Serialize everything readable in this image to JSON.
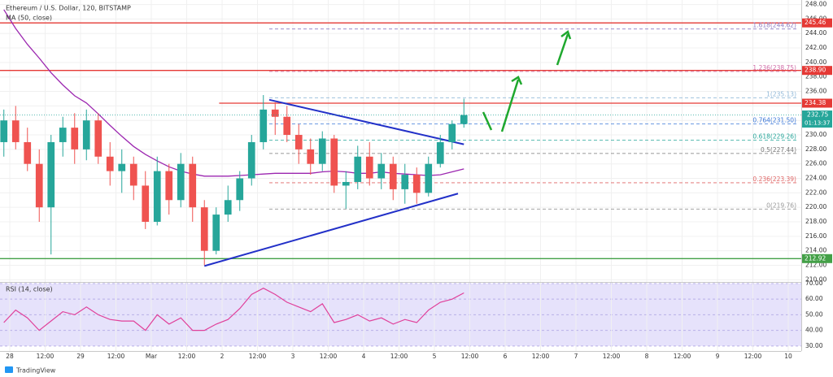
{
  "chart_data": {
    "type": "candlestick",
    "title": "Ethereum / U.S. Dollar, 120, BITSTAMP",
    "x": [
      -2,
      2,
      6,
      10,
      14,
      18,
      22,
      26,
      30,
      34,
      38,
      42,
      46,
      50,
      54,
      58,
      62,
      66,
      70,
      74,
      78,
      82,
      86,
      90,
      94,
      98,
      102,
      106,
      110,
      114,
      118,
      122,
      126,
      130,
      134,
      138,
      142,
      146,
      150,
      154
    ],
    "open": [
      229,
      232,
      229,
      226,
      220,
      229,
      231,
      228,
      232,
      227,
      225,
      226,
      223,
      218,
      225,
      221,
      226,
      220,
      214,
      219,
      221,
      224,
      229,
      233.5,
      232.5,
      230,
      228,
      226,
      229.5,
      223,
      223.5,
      227,
      224,
      226,
      222.5,
      224.5,
      222,
      226,
      229,
      231.5
    ],
    "high": [
      233.5,
      234,
      231,
      228,
      230,
      232.5,
      233,
      233.5,
      233,
      229,
      228,
      227,
      225,
      227,
      226,
      227.5,
      227,
      221,
      220,
      223,
      225,
      230,
      235.5,
      234.5,
      234,
      231.5,
      229.5,
      230.5,
      230,
      225,
      228.5,
      229,
      227.5,
      227,
      226,
      225.5,
      227,
      230,
      232,
      235
    ],
    "low": [
      227,
      228,
      225,
      218,
      213.5,
      227,
      226,
      226.5,
      226,
      223,
      222,
      221,
      217,
      217.5,
      219,
      220,
      218,
      212,
      213.5,
      218,
      219.5,
      223,
      228,
      230,
      229,
      226,
      224.5,
      225,
      222,
      219.8,
      222.5,
      223,
      222.5,
      221,
      220.5,
      220.5,
      221.5,
      225.5,
      228,
      231
    ],
    "close": [
      232,
      229,
      226,
      220,
      229,
      231,
      228,
      232,
      227,
      225,
      226,
      223,
      218,
      225,
      221,
      226,
      220,
      214,
      219,
      221,
      224,
      229,
      233.5,
      232.5,
      230,
      228,
      226,
      229.5,
      223,
      223.5,
      227,
      224,
      226,
      222.5,
      224.5,
      222,
      226,
      229,
      231.5,
      232.75
    ],
    "up_color": "#26a69a",
    "down_color": "#ef5350",
    "xlim": [
      -3.31,
      268.41
    ],
    "ylim": [
      209.7,
      248.4
    ],
    "grid": true,
    "xticks": [
      {
        "value": 0,
        "label": "28"
      },
      {
        "value": 12,
        "label": "12:00"
      },
      {
        "value": 24,
        "label": "29"
      },
      {
        "value": 36,
        "label": "12:00"
      },
      {
        "value": 48,
        "label": "Mar"
      },
      {
        "value": 60,
        "label": "12:00"
      },
      {
        "value": 72,
        "label": "2"
      },
      {
        "value": 84,
        "label": "12:00"
      },
      {
        "value": 96,
        "label": "3"
      },
      {
        "value": 108,
        "label": "12:00"
      },
      {
        "value": 120,
        "label": "4"
      },
      {
        "value": 132,
        "label": "12:00"
      },
      {
        "value": 144,
        "label": "5"
      },
      {
        "value": 156,
        "label": "12:00"
      },
      {
        "value": 168,
        "label": "6"
      },
      {
        "value": 180,
        "label": "12:00"
      },
      {
        "value": 192,
        "label": "7"
      },
      {
        "value": 204,
        "label": "12:00"
      },
      {
        "value": 216,
        "label": "8"
      },
      {
        "value": 228,
        "label": "12:00"
      },
      {
        "value": 240,
        "label": "9"
      },
      {
        "value": 252,
        "label": "12:00"
      },
      {
        "value": 264,
        "label": "10"
      }
    ],
    "yticks": [
      {
        "value": 210,
        "label": "210.00"
      },
      {
        "value": 212,
        "label": "212.00"
      },
      {
        "value": 214,
        "label": "214.00"
      },
      {
        "value": 216,
        "label": "216.00"
      },
      {
        "value": 218,
        "label": "218.00"
      },
      {
        "value": 220,
        "label": "220.00"
      },
      {
        "value": 222,
        "label": "222.00"
      },
      {
        "value": 224,
        "label": "224.00"
      },
      {
        "value": 226,
        "label": "226.00"
      },
      {
        "value": 228,
        "label": "228.00"
      },
      {
        "value": 230,
        "label": "230.00"
      },
      {
        "value": 232,
        "label": "232.00"
      },
      {
        "value": 234,
        "label": "234.00"
      },
      {
        "value": 236,
        "label": "236.00"
      },
      {
        "value": 238,
        "label": "238.00"
      },
      {
        "value": 240,
        "label": "240.00"
      },
      {
        "value": 242,
        "label": "242.00"
      },
      {
        "value": 244,
        "label": "244.00"
      },
      {
        "value": 246,
        "label": "246.00"
      },
      {
        "value": 248,
        "label": "248.00"
      }
    ],
    "ma": {
      "name": "MA (50, close)",
      "color": "#9c27b0",
      "values": [
        247.3,
        244.7,
        242.5,
        240.6,
        238.6,
        236.9,
        235.4,
        234.4,
        232.9,
        231.3,
        229.8,
        228.4,
        227.3,
        226.4,
        225.6,
        225.0,
        224.6,
        224.3,
        224.3,
        224.3,
        224.4,
        224.5,
        224.6,
        224.7,
        224.7,
        224.7,
        224.7,
        224.9,
        225.0,
        224.9,
        224.7,
        224.7,
        224.9,
        224.7,
        224.6,
        224.5,
        224.4,
        224.5,
        224.9,
        225.3
      ]
    },
    "fib_start": 88,
    "fib_levels": [
      {
        "label": "1.618(244.62)",
        "value": 244.62,
        "color": "#8e7cc3"
      },
      {
        "label": "1.236(238.75)",
        "value": 238.75,
        "color": "#d06ea8"
      },
      {
        "label": "1(235.13)",
        "value": 235.13,
        "color": "#90b8d8"
      },
      {
        "label": "0.764(231.50)",
        "value": 231.5,
        "color": "#3c78d8"
      },
      {
        "label": "0.618(229.26)",
        "value": 229.26,
        "color": "#26a69a"
      },
      {
        "label": "0.5(227.44)",
        "value": 227.44,
        "color": "#777777"
      },
      {
        "label": "0.236(223.39)",
        "value": 223.39,
        "color": "#e06666"
      },
      {
        "label": "0(219.76)",
        "value": 219.76,
        "color": "#999999"
      }
    ],
    "hlines": [
      {
        "value": 245.46,
        "color": "#e53935"
      },
      {
        "value": 238.9,
        "label": "238.90",
        "color": "#e53935"
      },
      {
        "value": 234.38,
        "color": "#e53935",
        "start": 71
      },
      {
        "value": 212.92,
        "color": "#43a047"
      }
    ],
    "trendlines": [
      {
        "x": [
          88,
          154
        ],
        "y": [
          234.85,
          228.7
        ],
        "color": "#2230c8"
      },
      {
        "x": [
          66,
          152
        ],
        "y": [
          211.9,
          221.9
        ],
        "color": "#2230c8"
      }
    ],
    "countdown": "01:13:37",
    "rsi": {
      "name": "RSI (14, close)",
      "color": "#e0409a",
      "values": [
        45,
        53,
        48,
        40,
        46,
        52,
        50,
        55,
        50,
        47,
        46,
        46,
        40,
        50,
        44,
        48,
        40,
        40,
        44,
        47,
        54,
        63,
        67,
        63,
        58,
        55,
        52,
        57,
        45,
        47,
        50,
        46,
        48,
        44,
        47,
        45,
        53,
        58,
        60,
        64
      ],
      "ylim": [
        26.8,
        70.5
      ],
      "yticks": [
        {
          "value": 30,
          "label": "30.00"
        },
        {
          "value": 40,
          "label": "40.00"
        },
        {
          "value": 50,
          "label": "50.00"
        },
        {
          "value": 60,
          "label": "60.00"
        },
        {
          "value": 70,
          "label": "70.00"
        }
      ]
    },
    "logo": "TradingView"
  }
}
